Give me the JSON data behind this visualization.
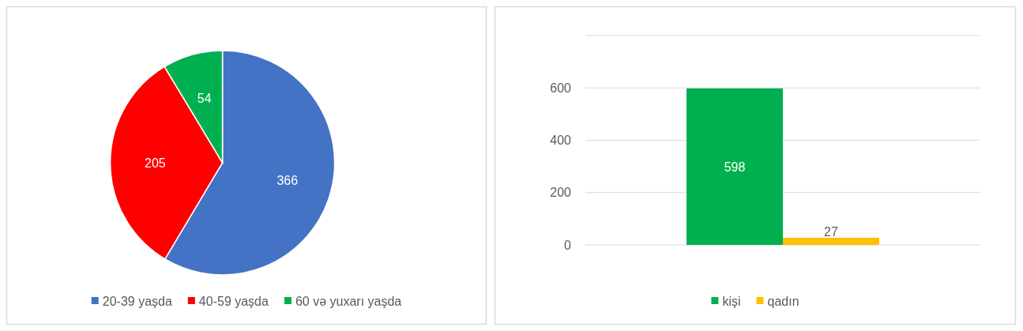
{
  "chart_data": [
    {
      "type": "pie",
      "categories": [
        "20-39 yaşda",
        "40-59 yaşda",
        "60 və yuxarı yaşda"
      ],
      "values": [
        366,
        205,
        54
      ],
      "colors": [
        "#4472c4",
        "#ff0000",
        "#00b050"
      ],
      "data_labels": true,
      "legend": "bottom"
    },
    {
      "type": "bar",
      "categories": [
        null
      ],
      "series": [
        {
          "name": "kişi",
          "color": "#00b050",
          "values": [
            598
          ]
        },
        {
          "name": "qadın",
          "color": "#ffc000",
          "values": [
            27
          ]
        }
      ],
      "ylim": [
        0,
        800
      ],
      "yticks": [
        0,
        200,
        400,
        600,
        {
          "value": 800,
          "label": null
        }
      ],
      "grid": "y",
      "data_labels": true,
      "legend": "bottom"
    }
  ]
}
